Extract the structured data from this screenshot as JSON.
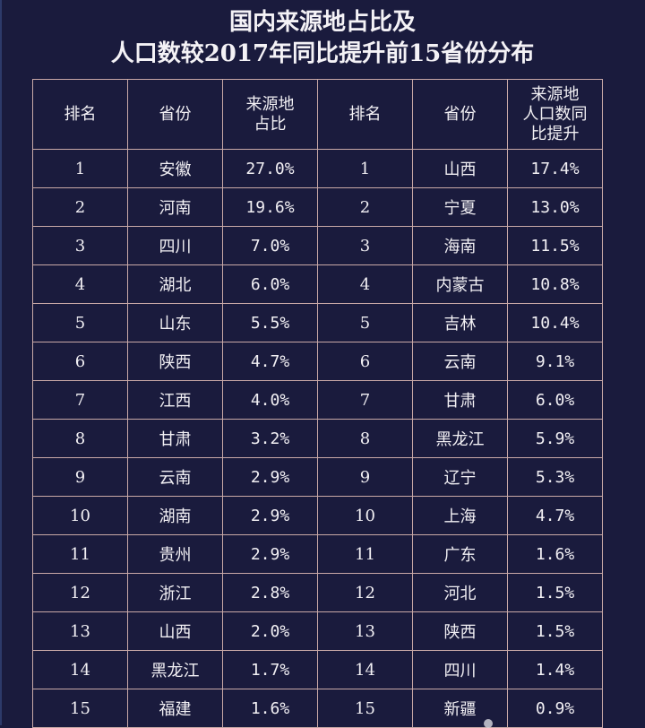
{
  "title": {
    "line1": "国内来源地占比及",
    "line2": "人口数较2017年同比提升前15省份分布"
  },
  "table": {
    "headers": {
      "left_rank": "排名",
      "left_province": "省份",
      "left_share_line1": "来源地",
      "left_share_line2": "占比",
      "right_rank": "排名",
      "right_province": "省份",
      "right_growth_line1": "来源地",
      "right_growth_line2": "人口数同",
      "right_growth_line3": "比提升"
    },
    "rows": [
      {
        "l_rank": "1",
        "l_prov": "安徽",
        "l_pct": "27.0%",
        "r_rank": "1",
        "r_prov": "山西",
        "r_pct": "17.4%"
      },
      {
        "l_rank": "2",
        "l_prov": "河南",
        "l_pct": "19.6%",
        "r_rank": "2",
        "r_prov": "宁夏",
        "r_pct": "13.0%"
      },
      {
        "l_rank": "3",
        "l_prov": "四川",
        "l_pct": "7.0%",
        "r_rank": "3",
        "r_prov": "海南",
        "r_pct": "11.5%"
      },
      {
        "l_rank": "4",
        "l_prov": "湖北",
        "l_pct": "6.0%",
        "r_rank": "4",
        "r_prov": "内蒙古",
        "r_pct": "10.8%"
      },
      {
        "l_rank": "5",
        "l_prov": "山东",
        "l_pct": "5.5%",
        "r_rank": "5",
        "r_prov": "吉林",
        "r_pct": "10.4%"
      },
      {
        "l_rank": "6",
        "l_prov": "陕西",
        "l_pct": "4.7%",
        "r_rank": "6",
        "r_prov": "云南",
        "r_pct": "9.1%"
      },
      {
        "l_rank": "7",
        "l_prov": "江西",
        "l_pct": "4.0%",
        "r_rank": "7",
        "r_prov": "甘肃",
        "r_pct": "6.0%"
      },
      {
        "l_rank": "8",
        "l_prov": "甘肃",
        "l_pct": "3.2%",
        "r_rank": "8",
        "r_prov": "黑龙江",
        "r_pct": "5.9%"
      },
      {
        "l_rank": "9",
        "l_prov": "云南",
        "l_pct": "2.9%",
        "r_rank": "9",
        "r_prov": "辽宁",
        "r_pct": "5.3%"
      },
      {
        "l_rank": "10",
        "l_prov": "湖南",
        "l_pct": "2.9%",
        "r_rank": "10",
        "r_prov": "上海",
        "r_pct": "4.7%"
      },
      {
        "l_rank": "11",
        "l_prov": "贵州",
        "l_pct": "2.9%",
        "r_rank": "11",
        "r_prov": "广东",
        "r_pct": "1.6%"
      },
      {
        "l_rank": "12",
        "l_prov": "浙江",
        "l_pct": "2.8%",
        "r_rank": "12",
        "r_prov": "河北",
        "r_pct": "1.5%"
      },
      {
        "l_rank": "13",
        "l_prov": "山西",
        "l_pct": "2.0%",
        "r_rank": "13",
        "r_prov": "陕西",
        "r_pct": "1.5%"
      },
      {
        "l_rank": "14",
        "l_prov": "黑龙江",
        "l_pct": "1.7%",
        "r_rank": "14",
        "r_prov": "四川",
        "r_pct": "1.4%"
      },
      {
        "l_rank": "15",
        "l_prov": "福建",
        "l_pct": "1.6%",
        "r_rank": "15",
        "r_prov": "新疆",
        "r_pct": "0.9%"
      }
    ]
  },
  "colors": {
    "background": "#1a1b3d",
    "grid_line": "#c9a9a7",
    "text": "#f2f0f4"
  }
}
